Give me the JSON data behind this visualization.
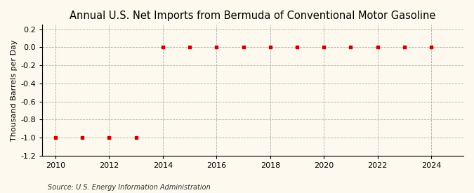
{
  "title": "Annual U.S. Net Imports from Bermuda of Conventional Motor Gasoline",
  "ylabel": "Thousand Barrels per Day",
  "source": "Source: U.S. Energy Information Administration",
  "background_color": "#fef9ee",
  "years": [
    2010,
    2011,
    2012,
    2013,
    2014,
    2015,
    2016,
    2017,
    2018,
    2019,
    2020,
    2021,
    2022,
    2023,
    2024
  ],
  "values": [
    -1.0,
    -1.0,
    -1.0,
    -1.0,
    0.0,
    0.0,
    0.0,
    0.0,
    0.0,
    0.0,
    0.0,
    0.0,
    0.0,
    0.0,
    0.0
  ],
  "marker_color": "#cc0000",
  "marker_style": "s",
  "marker_size": 3.5,
  "xlim": [
    2009.5,
    2025.2
  ],
  "ylim": [
    -1.2,
    0.25
  ],
  "yticks": [
    0.2,
    0.0,
    -0.2,
    -0.4,
    -0.6,
    -0.8,
    -1.0,
    -1.2
  ],
  "xticks": [
    2010,
    2012,
    2014,
    2016,
    2018,
    2020,
    2022,
    2024
  ],
  "grid_color": "#b0b0b0",
  "title_fontsize": 10.5,
  "label_fontsize": 8,
  "tick_fontsize": 8,
  "source_fontsize": 7
}
